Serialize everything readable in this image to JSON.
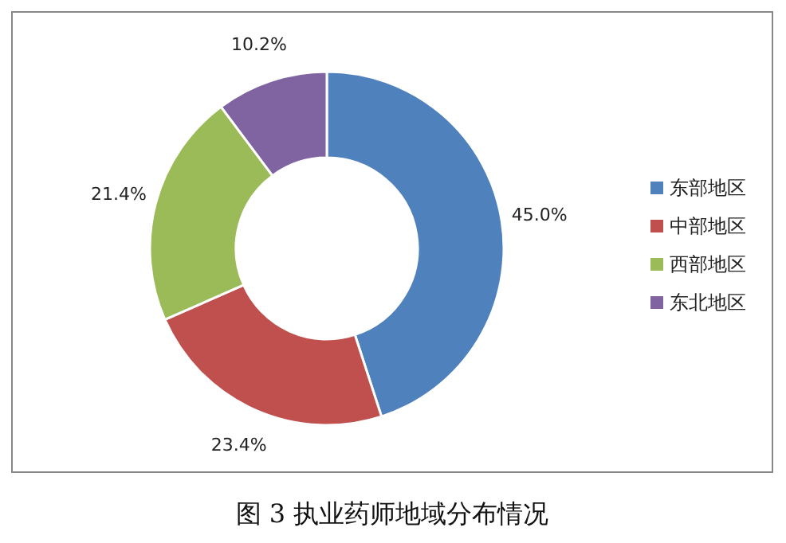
{
  "chart_data": {
    "type": "donut",
    "title": "图 3 执业药师地域分布情况",
    "categories": [
      "东部地区",
      "中部地区",
      "西部地区",
      "东北地区"
    ],
    "values": [
      45.0,
      23.4,
      21.4,
      10.2
    ],
    "value_labels": [
      "45.0%",
      "23.4%",
      "21.4%",
      "10.2%"
    ],
    "colors": [
      "#4f81bd",
      "#c0504d",
      "#9bbb59",
      "#8064a2"
    ],
    "legend": "right"
  }
}
